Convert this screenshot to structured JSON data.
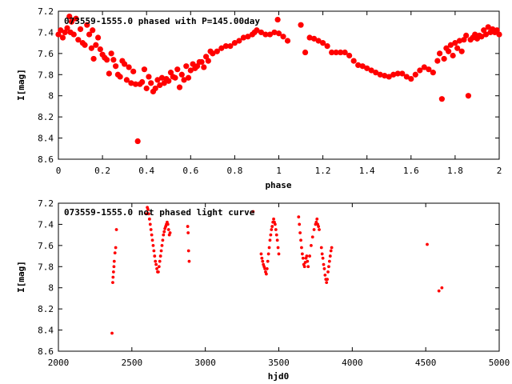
{
  "chart_data": [
    {
      "type": "scatter",
      "title": "073559-1555.0 phased with P=145.00day",
      "xlabel": "phase",
      "ylabel": "I[mag]",
      "xlim": [
        0,
        2
      ],
      "ylim": [
        7.2,
        8.6
      ],
      "y_inverted": true,
      "x_ticks": [
        "0",
        "0.2",
        "0.4",
        "0.6",
        "0.8",
        "1",
        "1.2",
        "1.4",
        "1.6",
        "1.8",
        "2"
      ],
      "y_ticks": [
        "7.2",
        "7.4",
        "7.6",
        "7.8",
        "8",
        "8.2",
        "8.4",
        "8.6"
      ],
      "marker": "circle-large",
      "color": "#ff0000",
      "points": [
        [
          0.0,
          7.42
        ],
        [
          0.01,
          7.38
        ],
        [
          0.02,
          7.45
        ],
        [
          0.03,
          7.4
        ],
        [
          0.04,
          7.36
        ],
        [
          0.05,
          7.25
        ],
        [
          0.055,
          7.4
        ],
        [
          0.06,
          7.3
        ],
        [
          0.07,
          7.42
        ],
        [
          0.08,
          7.27
        ],
        [
          0.09,
          7.47
        ],
        [
          0.1,
          7.37
        ],
        [
          0.11,
          7.5
        ],
        [
          0.12,
          7.52
        ],
        [
          0.13,
          7.33
        ],
        [
          0.14,
          7.42
        ],
        [
          0.15,
          7.55
        ],
        [
          0.155,
          7.38
        ],
        [
          0.16,
          7.65
        ],
        [
          0.17,
          7.52
        ],
        [
          0.18,
          7.45
        ],
        [
          0.19,
          7.56
        ],
        [
          0.2,
          7.61
        ],
        [
          0.21,
          7.64
        ],
        [
          0.22,
          7.66
        ],
        [
          0.23,
          7.79
        ],
        [
          0.24,
          7.6
        ],
        [
          0.25,
          7.66
        ],
        [
          0.26,
          7.72
        ],
        [
          0.27,
          7.8
        ],
        [
          0.28,
          7.82
        ],
        [
          0.29,
          7.67
        ],
        [
          0.3,
          7.7
        ],
        [
          0.31,
          7.85
        ],
        [
          0.32,
          7.73
        ],
        [
          0.33,
          7.88
        ],
        [
          0.34,
          7.77
        ],
        [
          0.35,
          7.89
        ],
        [
          0.36,
          8.43
        ],
        [
          0.37,
          7.89
        ],
        [
          0.38,
          7.87
        ],
        [
          0.39,
          7.75
        ],
        [
          0.4,
          7.93
        ],
        [
          0.41,
          7.82
        ],
        [
          0.42,
          7.88
        ],
        [
          0.43,
          7.96
        ],
        [
          0.44,
          7.93
        ],
        [
          0.45,
          7.85
        ],
        [
          0.46,
          7.9
        ],
        [
          0.47,
          7.83
        ],
        [
          0.48,
          7.88
        ],
        [
          0.49,
          7.84
        ],
        [
          0.5,
          7.86
        ],
        [
          0.51,
          7.78
        ],
        [
          0.52,
          7.82
        ],
        [
          0.53,
          7.83
        ],
        [
          0.54,
          7.75
        ],
        [
          0.55,
          7.92
        ],
        [
          0.56,
          7.8
        ],
        [
          0.57,
          7.85
        ],
        [
          0.58,
          7.72
        ],
        [
          0.59,
          7.83
        ],
        [
          0.6,
          7.76
        ],
        [
          0.61,
          7.7
        ],
        [
          0.62,
          7.74
        ],
        [
          0.63,
          7.72
        ],
        [
          0.64,
          7.68
        ],
        [
          0.65,
          7.68
        ],
        [
          0.66,
          7.73
        ],
        [
          0.67,
          7.63
        ],
        [
          0.68,
          7.67
        ],
        [
          0.69,
          7.58
        ],
        [
          0.7,
          7.6
        ],
        [
          0.72,
          7.58
        ],
        [
          0.74,
          7.55
        ],
        [
          0.76,
          7.53
        ],
        [
          0.78,
          7.53
        ],
        [
          0.8,
          7.5
        ],
        [
          0.82,
          7.48
        ],
        [
          0.84,
          7.45
        ],
        [
          0.86,
          7.44
        ],
        [
          0.88,
          7.42
        ],
        [
          0.89,
          7.4
        ],
        [
          0.9,
          7.38
        ],
        [
          0.92,
          7.4
        ],
        [
          0.94,
          7.42
        ],
        [
          0.96,
          7.42
        ],
        [
          0.98,
          7.4
        ],
        [
          0.995,
          7.28
        ],
        [
          1.0,
          7.41
        ],
        [
          1.02,
          7.44
        ],
        [
          1.04,
          7.48
        ],
        [
          1.1,
          7.33
        ],
        [
          1.12,
          7.59
        ],
        [
          1.14,
          7.45
        ],
        [
          1.16,
          7.46
        ],
        [
          1.18,
          7.48
        ],
        [
          1.2,
          7.5
        ],
        [
          1.22,
          7.53
        ],
        [
          1.24,
          7.59
        ],
        [
          1.26,
          7.59
        ],
        [
          1.28,
          7.59
        ],
        [
          1.3,
          7.59
        ],
        [
          1.32,
          7.62
        ],
        [
          1.34,
          7.67
        ],
        [
          1.36,
          7.71
        ],
        [
          1.38,
          7.72
        ],
        [
          1.4,
          7.74
        ],
        [
          1.42,
          7.76
        ],
        [
          1.44,
          7.78
        ],
        [
          1.46,
          7.8
        ],
        [
          1.48,
          7.81
        ],
        [
          1.5,
          7.82
        ],
        [
          1.52,
          7.8
        ],
        [
          1.54,
          7.79
        ],
        [
          1.56,
          7.79
        ],
        [
          1.58,
          7.82
        ],
        [
          1.6,
          7.84
        ],
        [
          1.62,
          7.8
        ],
        [
          1.64,
          7.76
        ],
        [
          1.66,
          7.73
        ],
        [
          1.68,
          7.75
        ],
        [
          1.7,
          7.78
        ],
        [
          1.72,
          7.67
        ],
        [
          1.73,
          7.6
        ],
        [
          1.74,
          8.03
        ],
        [
          1.75,
          7.65
        ],
        [
          1.76,
          7.55
        ],
        [
          1.77,
          7.58
        ],
        [
          1.78,
          7.52
        ],
        [
          1.79,
          7.62
        ],
        [
          1.8,
          7.5
        ],
        [
          1.81,
          7.55
        ],
        [
          1.82,
          7.48
        ],
        [
          1.83,
          7.58
        ],
        [
          1.84,
          7.47
        ],
        [
          1.85,
          7.43
        ],
        [
          1.86,
          8.0
        ],
        [
          1.87,
          7.47
        ],
        [
          1.88,
          7.45
        ],
        [
          1.89,
          7.42
        ],
        [
          1.9,
          7.46
        ],
        [
          1.91,
          7.43
        ],
        [
          1.92,
          7.44
        ],
        [
          1.93,
          7.38
        ],
        [
          1.94,
          7.42
        ],
        [
          1.95,
          7.35
        ],
        [
          1.96,
          7.4
        ],
        [
          1.97,
          7.37
        ],
        [
          1.98,
          7.4
        ],
        [
          1.99,
          7.38
        ],
        [
          2.0,
          7.42
        ]
      ]
    },
    {
      "type": "scatter",
      "title": "073559-1555.0 not phased light curve",
      "xlabel": "hjd0",
      "ylabel": "I[mag]",
      "xlim": [
        2000,
        5000
      ],
      "ylim": [
        7.2,
        8.6
      ],
      "y_inverted": true,
      "x_ticks": [
        "2000",
        "2500",
        "3000",
        "3500",
        "4000",
        "4500",
        "5000"
      ],
      "y_ticks": [
        "7.2",
        "7.4",
        "7.6",
        "7.8",
        "8",
        "8.2",
        "8.4",
        "8.6"
      ],
      "marker": "circle-small",
      "color": "#ff0000",
      "points": [
        [
          2365,
          8.43
        ],
        [
          2370,
          7.95
        ],
        [
          2372,
          7.9
        ],
        [
          2375,
          7.85
        ],
        [
          2378,
          7.8
        ],
        [
          2380,
          7.75
        ],
        [
          2385,
          7.67
        ],
        [
          2390,
          7.62
        ],
        [
          2395,
          7.45
        ],
        [
          2600,
          7.3
        ],
        [
          2605,
          7.24
        ],
        [
          2610,
          7.26
        ],
        [
          2615,
          7.3
        ],
        [
          2620,
          7.35
        ],
        [
          2625,
          7.4
        ],
        [
          2630,
          7.45
        ],
        [
          2635,
          7.5
        ],
        [
          2640,
          7.55
        ],
        [
          2645,
          7.6
        ],
        [
          2650,
          7.65
        ],
        [
          2655,
          7.7
        ],
        [
          2660,
          7.75
        ],
        [
          2665,
          7.78
        ],
        [
          2670,
          7.82
        ],
        [
          2675,
          7.85
        ],
        [
          2680,
          7.85
        ],
        [
          2685,
          7.8
        ],
        [
          2690,
          7.75
        ],
        [
          2695,
          7.7
        ],
        [
          2700,
          7.65
        ],
        [
          2705,
          7.6
        ],
        [
          2710,
          7.55
        ],
        [
          2715,
          7.5
        ],
        [
          2720,
          7.47
        ],
        [
          2725,
          7.44
        ],
        [
          2730,
          7.42
        ],
        [
          2735,
          7.4
        ],
        [
          2740,
          7.38
        ],
        [
          2745,
          7.4
        ],
        [
          2750,
          7.45
        ],
        [
          2755,
          7.5
        ],
        [
          2760,
          7.48
        ],
        [
          2880,
          7.42
        ],
        [
          2883,
          7.48
        ],
        [
          2886,
          7.65
        ],
        [
          2890,
          7.75
        ],
        [
          3325,
          7.28
        ],
        [
          3380,
          7.68
        ],
        [
          3385,
          7.72
        ],
        [
          3390,
          7.75
        ],
        [
          3395,
          7.78
        ],
        [
          3400,
          7.8
        ],
        [
          3405,
          7.82
        ],
        [
          3410,
          7.85
        ],
        [
          3415,
          7.87
        ],
        [
          3420,
          7.82
        ],
        [
          3425,
          7.75
        ],
        [
          3430,
          7.68
        ],
        [
          3435,
          7.62
        ],
        [
          3440,
          7.55
        ],
        [
          3445,
          7.5
        ],
        [
          3450,
          7.45
        ],
        [
          3455,
          7.42
        ],
        [
          3460,
          7.38
        ],
        [
          3465,
          7.35
        ],
        [
          3470,
          7.38
        ],
        [
          3475,
          7.4
        ],
        [
          3480,
          7.45
        ],
        [
          3485,
          7.5
        ],
        [
          3490,
          7.55
        ],
        [
          3495,
          7.62
        ],
        [
          3500,
          7.68
        ],
        [
          3635,
          7.33
        ],
        [
          3640,
          7.4
        ],
        [
          3645,
          7.48
        ],
        [
          3650,
          7.55
        ],
        [
          3655,
          7.62
        ],
        [
          3660,
          7.68
        ],
        [
          3665,
          7.72
        ],
        [
          3670,
          7.78
        ],
        [
          3675,
          7.8
        ],
        [
          3680,
          7.76
        ],
        [
          3685,
          7.72
        ],
        [
          3690,
          7.7
        ],
        [
          3695,
          7.75
        ],
        [
          3700,
          7.8
        ],
        [
          3710,
          7.7
        ],
        [
          3720,
          7.6
        ],
        [
          3730,
          7.52
        ],
        [
          3740,
          7.45
        ],
        [
          3750,
          7.4
        ],
        [
          3755,
          7.38
        ],
        [
          3760,
          7.35
        ],
        [
          3765,
          7.4
        ],
        [
          3770,
          7.42
        ],
        [
          3775,
          7.45
        ],
        [
          3790,
          7.62
        ],
        [
          3795,
          7.68
        ],
        [
          3800,
          7.72
        ],
        [
          3805,
          7.78
        ],
        [
          3810,
          7.82
        ],
        [
          3815,
          7.88
        ],
        [
          3820,
          7.92
        ],
        [
          3825,
          7.95
        ],
        [
          3830,
          7.92
        ],
        [
          3835,
          7.85
        ],
        [
          3840,
          7.8
        ],
        [
          3845,
          7.75
        ],
        [
          3850,
          7.7
        ],
        [
          3855,
          7.65
        ],
        [
          3860,
          7.62
        ],
        [
          4510,
          7.59
        ],
        [
          4590,
          8.03
        ],
        [
          4610,
          8.0
        ]
      ]
    }
  ]
}
